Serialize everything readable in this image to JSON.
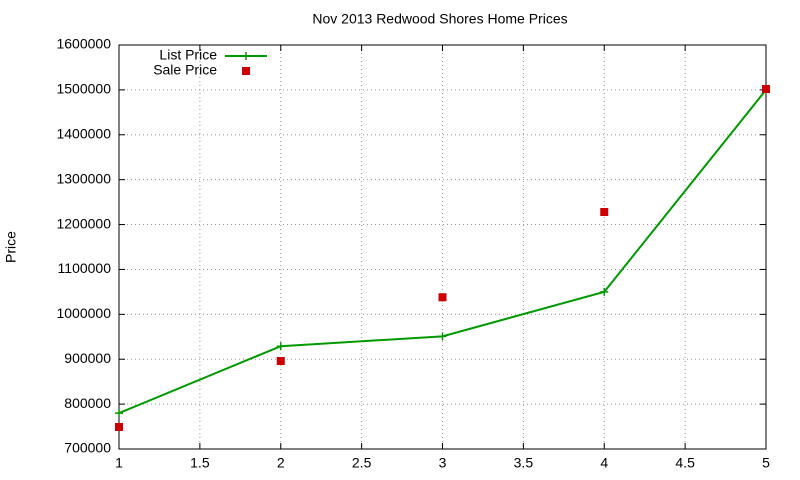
{
  "chart_data": {
    "type": "line",
    "title": "Nov 2013 Redwood Shores Home Prices",
    "y_label": "Price",
    "x": [
      1,
      2,
      3,
      4,
      5
    ],
    "series": [
      {
        "name": "List Price",
        "color": "#009900",
        "style": "linespoints",
        "marker": "plus",
        "values": [
          780000,
          929000,
          951000,
          1050000,
          1500000
        ]
      },
      {
        "name": "Sale Price",
        "color": "#cc0000",
        "style": "points",
        "marker": "square",
        "values": [
          749000,
          896000,
          1038000,
          1228000,
          1502000
        ]
      }
    ],
    "xlim": [
      1,
      5
    ],
    "xticks": [
      1,
      1.5,
      2,
      2.5,
      3,
      3.5,
      4,
      4.5,
      5
    ],
    "ylim": [
      700000,
      1600000
    ],
    "yticks": [
      700000,
      800000,
      900000,
      1000000,
      1100000,
      1200000,
      1300000,
      1400000,
      1500000,
      1600000
    ],
    "grid": true,
    "legend": "top-left"
  }
}
